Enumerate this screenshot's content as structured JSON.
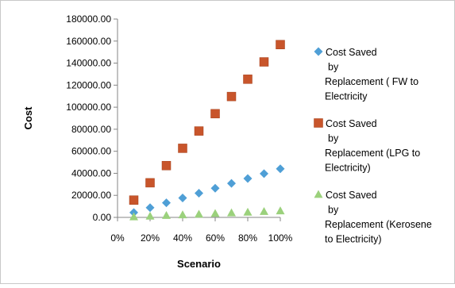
{
  "chart_data": {
    "type": "scatter",
    "title": "",
    "xlabel": "Scenario",
    "ylabel": "Cost",
    "x": [
      0.1,
      0.2,
      0.3,
      0.4,
      0.5,
      0.6,
      0.7,
      0.8,
      0.9,
      1.0
    ],
    "xlim": [
      0,
      1
    ],
    "ylim": [
      0,
      180000
    ],
    "x_ticks": [
      "0%",
      "20%",
      "40%",
      "60%",
      "80%",
      "100%"
    ],
    "y_ticks": [
      "0.00",
      "20000.00",
      "40000.00",
      "60000.00",
      "80000.00",
      "100000.00",
      "120000.00",
      "140000.00",
      "160000.00",
      "180000.00"
    ],
    "grid": false,
    "legend_position": "right",
    "series": [
      {
        "name": "Cost Saved by Replacement ( FW to Electricity",
        "legend_lines": [
          "Cost Saved",
          "by",
          "Replacement ( FW to",
          "Electricity"
        ],
        "marker": "diamond",
        "color": "#4F9FD6",
        "values": [
          4400,
          8800,
          13200,
          17600,
          22000,
          26500,
          30900,
          35300,
          39700,
          44100
        ]
      },
      {
        "name": "Cost Saved by Replacement (LPG to Electricity)",
        "legend_lines": [
          "Cost Saved",
          "by",
          "Replacement (LPG to",
          "Electricity)"
        ],
        "marker": "square",
        "color": "#C8552B",
        "values": [
          15700,
          31400,
          47000,
          62700,
          78400,
          94100,
          109700,
          125400,
          141100,
          156800
        ]
      },
      {
        "name": "Cost Saved by Replacement (Kerosene to Electricity)",
        "legend_lines": [
          "Cost Saved",
          "by",
          "Replacement (Kerosene",
          "to Electricity)"
        ],
        "marker": "triangle",
        "color": "#9BD17C",
        "values": [
          600,
          1200,
          1800,
          2400,
          3000,
          3600,
          4200,
          4800,
          5400,
          6000
        ]
      }
    ]
  }
}
